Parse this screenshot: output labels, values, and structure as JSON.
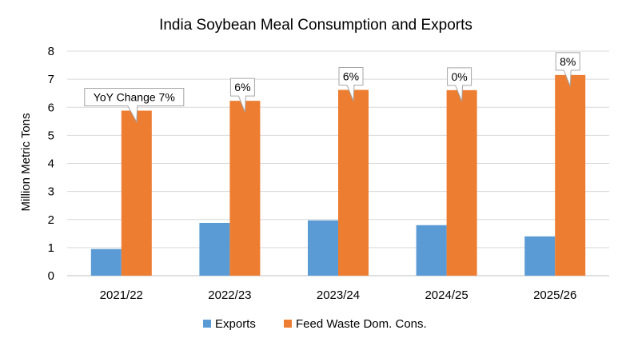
{
  "chart_data": {
    "type": "bar",
    "title": "India Soybean Meal Consumption and Exports",
    "ylabel": "Million Metric Tons",
    "xlabel": "",
    "ylim": [
      0,
      8
    ],
    "yticks": [
      0,
      1,
      2,
      3,
      4,
      5,
      6,
      7,
      8
    ],
    "grid": true,
    "legend_position": "bottom",
    "categories": [
      "2021/22",
      "2022/23",
      "2023/24",
      "2024/25",
      "2025/26"
    ],
    "series": [
      {
        "name": "Exports",
        "color": "#5B9BD5",
        "values": [
          0.95,
          1.88,
          1.97,
          1.8,
          1.4
        ]
      },
      {
        "name": "Feed Waste Dom. Cons.",
        "color": "#ED7D31",
        "values": [
          5.88,
          6.23,
          6.62,
          6.61,
          7.15
        ]
      }
    ],
    "annotations": [
      {
        "category": "2021/22",
        "series": "Feed Waste Dom. Cons.",
        "text": "YoY Change 7%"
      },
      {
        "category": "2022/23",
        "series": "Feed Waste Dom. Cons.",
        "text": "6%"
      },
      {
        "category": "2023/24",
        "series": "Feed Waste Dom. Cons.",
        "text": "6%"
      },
      {
        "category": "2024/25",
        "series": "Feed Waste Dom. Cons.",
        "text": "0%"
      },
      {
        "category": "2025/26",
        "series": "Feed Waste Dom. Cons.",
        "text": "8%"
      }
    ]
  }
}
